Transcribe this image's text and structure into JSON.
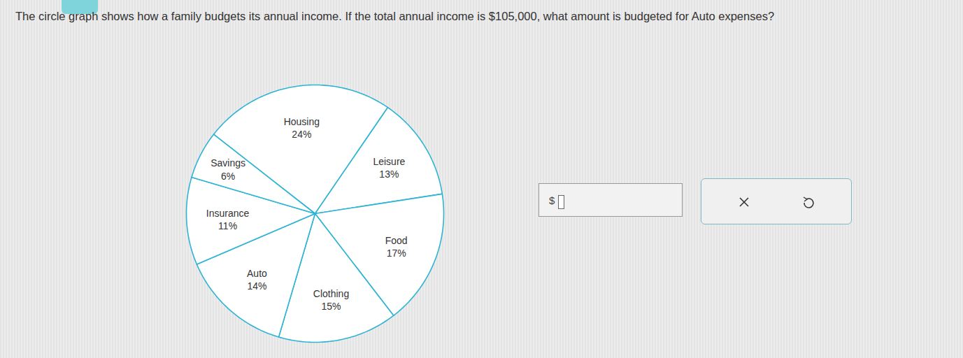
{
  "chart_data": {
    "type": "pie",
    "title": "The circle graph shows how a family budgets its annual income. If the total annual income is $105,000, what amount is budgeted for Auto expenses?",
    "categories": [
      "Housing",
      "Leisure",
      "Food",
      "Clothing",
      "Auto",
      "Insurance",
      "Savings"
    ],
    "values": [
      24,
      13,
      17,
      15,
      14,
      11,
      6
    ],
    "value_labels": [
      "24%",
      "13%",
      "17%",
      "15%",
      "14%",
      "11%",
      "6%"
    ],
    "data_labels": true,
    "color": "#2fb4d4",
    "annotations": [
      "$"
    ]
  }
}
